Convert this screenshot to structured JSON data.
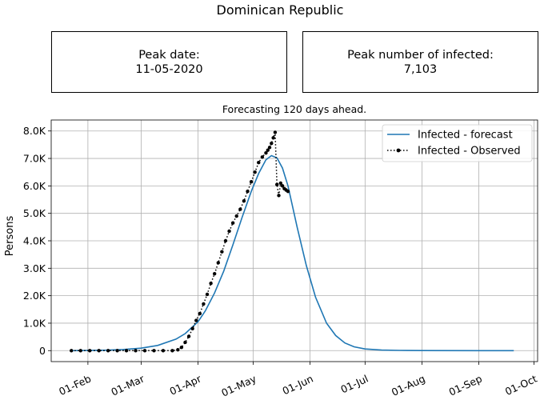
{
  "header": {
    "title": "Dominican Republic",
    "peak_date_label": "Peak date:",
    "peak_date_value": "11-05-2020",
    "peak_infected_label": "Peak number of infected:",
    "peak_infected_value": "7,103"
  },
  "chart_data": {
    "type": "line",
    "title": "Forecasting 120 days ahead.",
    "xlabel": "",
    "ylabel": "Persons",
    "x_axis": {
      "kind": "date",
      "range": [
        "2020-01-12",
        "2020-10-03"
      ],
      "ticks": [
        {
          "date": "2020-02-01",
          "label": "01-Feb"
        },
        {
          "date": "2020-03-01",
          "label": "01-Mar"
        },
        {
          "date": "2020-04-01",
          "label": "01-Apr"
        },
        {
          "date": "2020-05-01",
          "label": "01-May"
        },
        {
          "date": "2020-06-01",
          "label": "01-Jun"
        },
        {
          "date": "2020-07-01",
          "label": "01-Jul"
        },
        {
          "date": "2020-08-01",
          "label": "01-Aug"
        },
        {
          "date": "2020-09-01",
          "label": "01-Sep"
        },
        {
          "date": "2020-10-01",
          "label": "01-Oct"
        }
      ]
    },
    "y_axis": {
      "range": [
        -400,
        8400
      ],
      "ticks": [
        {
          "value": 0,
          "label": "0"
        },
        {
          "value": 1000,
          "label": "1.0K"
        },
        {
          "value": 2000,
          "label": "2.0K"
        },
        {
          "value": 3000,
          "label": "3.0K"
        },
        {
          "value": 4000,
          "label": "4.0K"
        },
        {
          "value": 5000,
          "label": "5.0K"
        },
        {
          "value": 6000,
          "label": "6.0K"
        },
        {
          "value": 7000,
          "label": "7.0K"
        },
        {
          "value": 8000,
          "label": "8.0K"
        }
      ]
    },
    "grid": true,
    "legend": "top-right",
    "colors": {
      "forecast": "#1f77b4",
      "observed": "#000000"
    },
    "series": [
      {
        "name": "Infected - forecast",
        "style": "solid",
        "x": [
          "2020-01-23",
          "2020-02-01",
          "2020-02-10",
          "2020-02-20",
          "2020-03-01",
          "2020-03-10",
          "2020-03-20",
          "2020-03-25",
          "2020-04-01",
          "2020-04-05",
          "2020-04-10",
          "2020-04-15",
          "2020-04-20",
          "2020-04-25",
          "2020-04-30",
          "2020-05-04",
          "2020-05-08",
          "2020-05-11",
          "2020-05-14",
          "2020-05-17",
          "2020-05-20",
          "2020-05-25",
          "2020-05-30",
          "2020-06-04",
          "2020-06-10",
          "2020-06-15",
          "2020-06-20",
          "2020-06-25",
          "2020-07-01",
          "2020-07-10",
          "2020-07-20",
          "2020-08-01",
          "2020-09-01",
          "2020-09-20"
        ],
        "values": [
          0,
          5,
          15,
          40,
          90,
          190,
          420,
          620,
          1050,
          1450,
          2100,
          2900,
          3850,
          4850,
          5800,
          6450,
          6950,
          7103,
          7020,
          6650,
          6000,
          4500,
          3100,
          1950,
          1000,
          550,
          280,
          140,
          60,
          20,
          8,
          3,
          0,
          0
        ]
      },
      {
        "name": "Infected - Observed",
        "style": "dotted-markers",
        "x": [
          "2020-01-23",
          "2020-01-28",
          "2020-02-02",
          "2020-02-07",
          "2020-02-12",
          "2020-02-17",
          "2020-02-22",
          "2020-02-27",
          "2020-03-03",
          "2020-03-08",
          "2020-03-13",
          "2020-03-18",
          "2020-03-21",
          "2020-03-23",
          "2020-03-25",
          "2020-03-27",
          "2020-03-29",
          "2020-03-31",
          "2020-04-02",
          "2020-04-04",
          "2020-04-06",
          "2020-04-08",
          "2020-04-10",
          "2020-04-12",
          "2020-04-14",
          "2020-04-16",
          "2020-04-18",
          "2020-04-20",
          "2020-04-22",
          "2020-04-24",
          "2020-04-26",
          "2020-04-28",
          "2020-04-30",
          "2020-05-02",
          "2020-05-04",
          "2020-05-06",
          "2020-05-08",
          "2020-05-09",
          "2020-05-10",
          "2020-05-11",
          "2020-05-12",
          "2020-05-13",
          "2020-05-14",
          "2020-05-15",
          "2020-05-16",
          "2020-05-17",
          "2020-05-18",
          "2020-05-19",
          "2020-05-20"
        ],
        "values": [
          0,
          0,
          0,
          0,
          0,
          0,
          0,
          0,
          0,
          0,
          0,
          0,
          30,
          120,
          300,
          520,
          800,
          1100,
          1350,
          1700,
          2050,
          2450,
          2800,
          3200,
          3600,
          4000,
          4350,
          4650,
          4900,
          5150,
          5450,
          5800,
          6150,
          6500,
          6850,
          7050,
          7200,
          7300,
          7400,
          7550,
          7750,
          7950,
          6050,
          5650,
          6100,
          6000,
          5900,
          5850,
          5800
        ]
      }
    ]
  }
}
